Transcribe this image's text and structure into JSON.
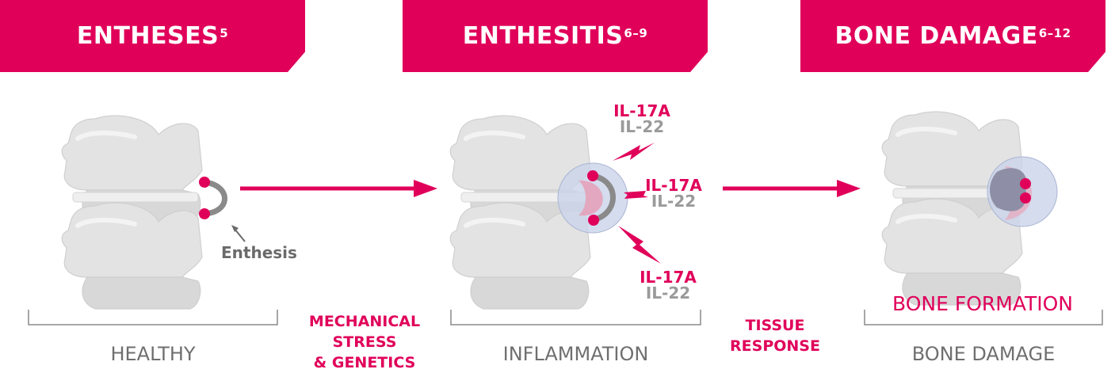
{
  "stages": [
    {
      "title": "ENTHESES",
      "ref": "5",
      "label": "HEALTHY"
    },
    {
      "title": "ENTHESITIS",
      "ref": "6–9",
      "label": "INFLAMMATION"
    },
    {
      "title": "BONE DAMAGE",
      "ref": "6–12",
      "label": "BONE DAMAGE"
    }
  ],
  "transitions": [
    {
      "lines": [
        "MECHANICAL",
        "STRESS",
        "& GENETICS"
      ]
    },
    {
      "lines": [
        "TISSUE",
        "RESPONSE"
      ]
    }
  ],
  "enthesis_label": "Enthesis",
  "cytokines": [
    {
      "a": "IL-17A",
      "b": "IL-22"
    },
    {
      "a": "IL-17A",
      "b": "IL-22"
    },
    {
      "a": "IL-17A",
      "b": "IL-22"
    }
  ],
  "bone_formation_label": "BONE FORMATION",
  "colors": {
    "accent": "#e0005a",
    "bone": "#e3e3e3",
    "halo": "#c9d3ea",
    "grey_text": "#6f6f6f"
  }
}
